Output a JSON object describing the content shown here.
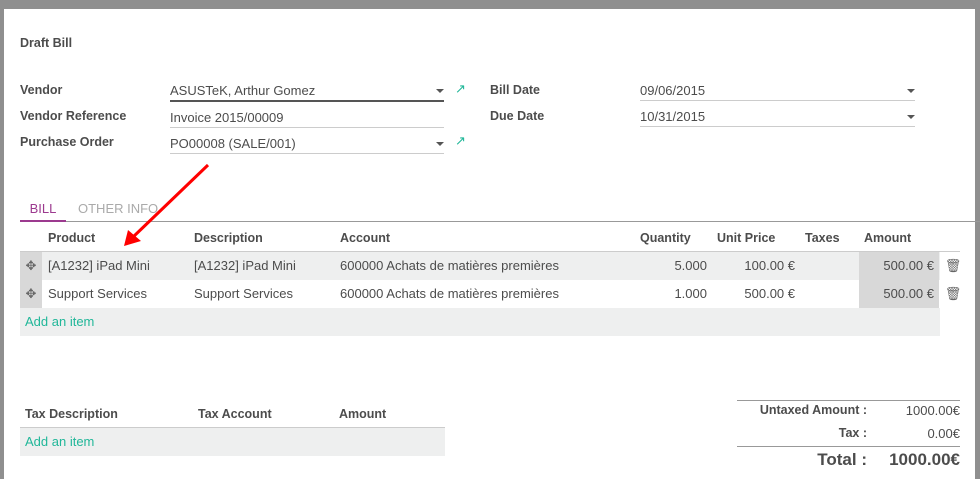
{
  "title": "Draft Bill",
  "fields": {
    "vendor_label": "Vendor",
    "vendor": "ASUSTeK, Arthur Gomez",
    "vendor_ref_label": "Vendor Reference",
    "vendor_ref": "Invoice 2015/00009",
    "po_label": "Purchase Order",
    "po": "PO00008 (SALE/001)",
    "bill_date_label": "Bill Date",
    "bill_date": "09/06/2015",
    "due_date_label": "Due Date",
    "due_date": "10/31/2015"
  },
  "tabs": [
    {
      "label": "BILL",
      "active": true
    },
    {
      "label": "OTHER INFO"
    }
  ],
  "lines": {
    "headers": [
      "Product",
      "Description",
      "Account",
      "Quantity",
      "Unit Price",
      "Taxes",
      "Amount"
    ],
    "rows": [
      {
        "product": "[A1232] iPad Mini",
        "description": "[A1232] iPad Mini",
        "account": "600000 Achats de matières premières",
        "quantity": "5.000",
        "unit_price": "100.00 €",
        "taxes": "",
        "amount": "500.00 €"
      },
      {
        "product": "Support Services",
        "description": "Support Services",
        "account": "600000 Achats de matières premières",
        "quantity": "1.000",
        "unit_price": "500.00 €",
        "taxes": "",
        "amount": "500.00 €"
      }
    ],
    "add_item": "Add an item"
  },
  "tax_lines": {
    "headers": [
      "Tax Description",
      "Tax Account",
      "Amount"
    ],
    "add_item": "Add an item"
  },
  "totals": {
    "untaxed_label": "Untaxed Amount :",
    "untaxed": "1000.00€",
    "tax_label": "Tax :",
    "tax": "0.00€",
    "total_label": "Total :",
    "total": "1000.00€"
  },
  "colors": {
    "accent": "#21b799",
    "tab_active": "#9c3a8f",
    "annotation_arrow": "#ff0000"
  }
}
